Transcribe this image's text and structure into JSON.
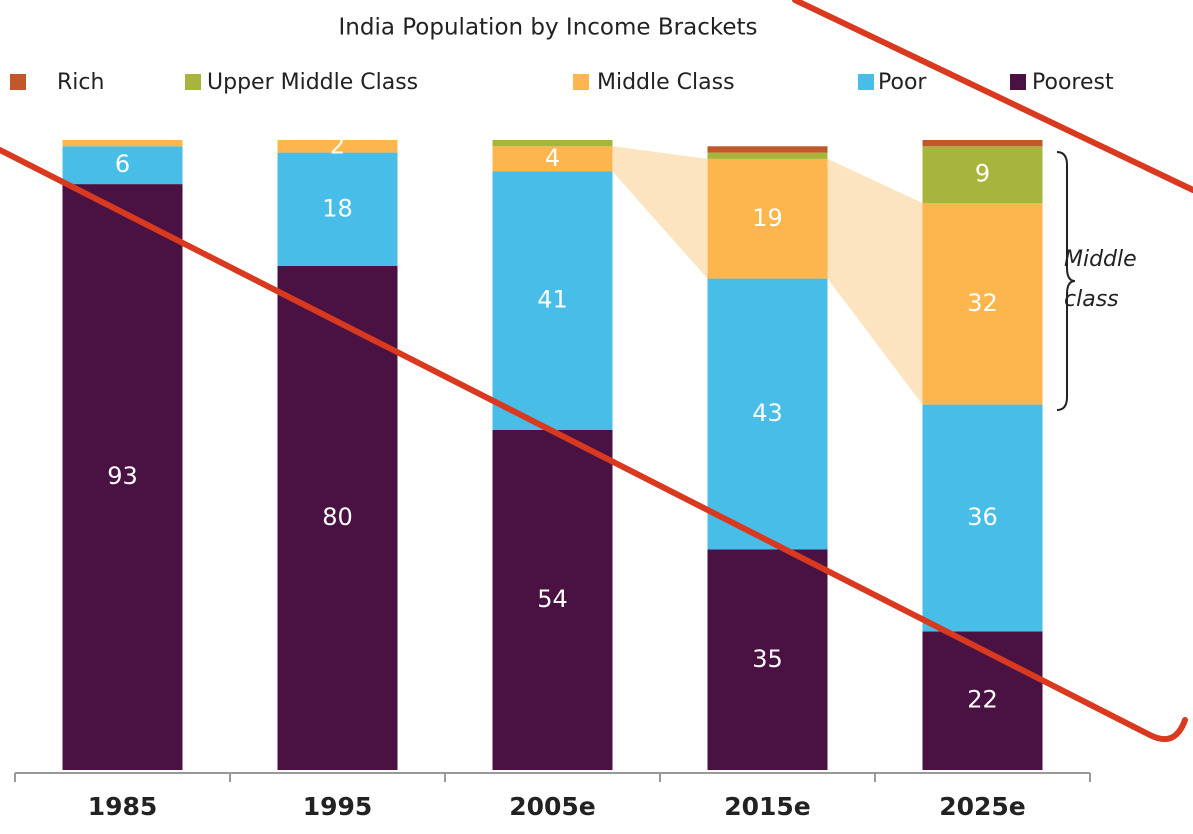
{
  "chart_data": {
    "type": "bar",
    "stacked": true,
    "title": "India Population by Income Brackets",
    "categories": [
      "1985",
      "1995",
      "2005e",
      "2015e",
      "2025e"
    ],
    "series": [
      {
        "name": "Poorest",
        "color": "#4a1242",
        "values": [
          93,
          80,
          54,
          35,
          22
        ]
      },
      {
        "name": "Poor",
        "color": "#47bde8",
        "values": [
          6,
          18,
          41,
          43,
          36
        ]
      },
      {
        "name": "Middle Class",
        "color": "#fdb64e",
        "values": [
          1,
          2,
          4,
          19,
          32
        ]
      },
      {
        "name": "Upper Middle Class",
        "color": "#a8b53d",
        "values": [
          0,
          0,
          1,
          1,
          9
        ]
      },
      {
        "name": "Rich",
        "color": "#c0582b",
        "values": [
          0,
          0,
          0,
          1,
          1
        ]
      }
    ],
    "legend_order": [
      "Rich",
      "Upper Middle Class",
      "Middle Class",
      "Poor",
      "Poorest"
    ],
    "annotation": "Middle class",
    "ylim": [
      0,
      100
    ]
  }
}
